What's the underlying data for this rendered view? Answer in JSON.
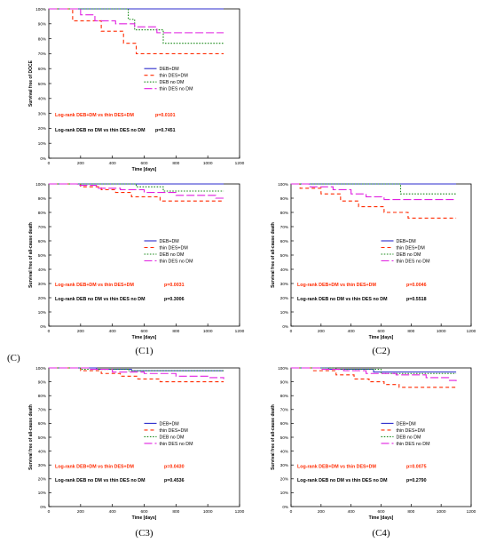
{
  "figure": {
    "section_label": "(C)",
    "captions": [
      "(C1)",
      "(C2)",
      "(C3)",
      "(C4)"
    ]
  },
  "legend_entries": [
    {
      "name": "DEB+DM",
      "color": "#2b2bcc",
      "dash": "solid"
    },
    {
      "name": "thin DES+DM",
      "color": "#ff2a00",
      "dash": "dashed"
    },
    {
      "name": "DEB no DM",
      "color": "#1a8a1a",
      "dash": "dotted"
    },
    {
      "name": "thin DES no DM",
      "color": "#e020e0",
      "dash": "longdash"
    }
  ],
  "chart_data": [
    {
      "type": "line",
      "caption": "",
      "ylabel": "Survival free of DOCE",
      "xlabel": "Time [days]",
      "xlim": [
        0,
        1200
      ],
      "ylim": [
        0,
        100
      ],
      "xticks": [
        0,
        200,
        400,
        600,
        800,
        1000,
        1200
      ],
      "yticks": [
        0,
        10,
        20,
        30,
        40,
        50,
        60,
        70,
        80,
        90,
        100
      ],
      "grid": false,
      "legend_position": "lower-middle",
      "stats": [
        {
          "text": "Log-rank DEB+DM vs thin DES+DM",
          "p": "p=0.0101",
          "color": "#ff2a00"
        },
        {
          "text": "Log-rank DEB no DM vs thin DES no DM",
          "p": "p=0.7451",
          "color": "#000000"
        }
      ],
      "series": [
        {
          "name": "DEB+DM",
          "x": [
            0,
            1100
          ],
          "y": [
            100,
            100
          ]
        },
        {
          "name": "thin DES+DM",
          "x": [
            0,
            150,
            330,
            470,
            550,
            1100
          ],
          "y": [
            100,
            92,
            85,
            77,
            70,
            70
          ]
        },
        {
          "name": "DEB no DM",
          "x": [
            0,
            500,
            540,
            720,
            1100
          ],
          "y": [
            100,
            93,
            86,
            77,
            77
          ]
        },
        {
          "name": "thin DES no DM",
          "x": [
            0,
            200,
            290,
            420,
            540,
            680,
            1100
          ],
          "y": [
            100,
            96,
            92,
            90,
            88,
            84,
            84
          ]
        }
      ]
    },
    {
      "type": "line",
      "caption": "(C1)",
      "ylabel": "Survival free of all-cause death",
      "xlabel": "Time [days]",
      "xlim": [
        0,
        1200
      ],
      "ylim": [
        0,
        100
      ],
      "xticks": [
        0,
        200,
        400,
        600,
        800,
        1000,
        1200
      ],
      "yticks": [
        0,
        10,
        20,
        30,
        40,
        50,
        60,
        70,
        80,
        90,
        100
      ],
      "grid": false,
      "legend_position": "lower-middle",
      "stats": [
        {
          "text": "Log-rank DEB+DM vs thin DES+DM",
          "p": "p=0.0031",
          "color": "#ff2a00"
        },
        {
          "text": "Log-rank DEB no DM vs thin DES no DM",
          "p": "p=0.3006",
          "color": "#000000"
        }
      ],
      "series": [
        {
          "name": "DEB+DM",
          "x": [
            0,
            1100
          ],
          "y": [
            100,
            100
          ]
        },
        {
          "name": "thin DES+DM",
          "x": [
            0,
            200,
            330,
            420,
            520,
            700,
            1100
          ],
          "y": [
            100,
            98,
            96,
            94,
            91,
            88,
            88
          ]
        },
        {
          "name": "DEB no DM",
          "x": [
            0,
            550,
            720,
            1100
          ],
          "y": [
            100,
            98,
            95,
            95
          ]
        },
        {
          "name": "thin DES no DM",
          "x": [
            0,
            180,
            300,
            450,
            600,
            800,
            1050,
            1100
          ],
          "y": [
            100,
            99,
            97,
            96,
            94,
            92,
            90,
            90
          ]
        }
      ]
    },
    {
      "type": "line",
      "caption": "(C2)",
      "ylabel": "Survival free of all-cause death",
      "xlabel": "Time [days]",
      "xlim": [
        0,
        1200
      ],
      "ylim": [
        0,
        100
      ],
      "xticks": [
        0,
        200,
        400,
        600,
        800,
        1000,
        1200
      ],
      "yticks": [
        0,
        10,
        20,
        30,
        40,
        50,
        60,
        70,
        80,
        90,
        100
      ],
      "grid": false,
      "legend_position": "lower-middle",
      "stats": [
        {
          "text": "Log-rank DEB+DM vs thin DES+DM",
          "p": "p=0.0046",
          "color": "#ff2a00"
        },
        {
          "text": "Log-rank DEB no DM vs thin DES no DM",
          "p": "p=0.5518",
          "color": "#000000"
        }
      ],
      "series": [
        {
          "name": "DEB+DM",
          "x": [
            0,
            1100
          ],
          "y": [
            100,
            100
          ]
        },
        {
          "name": "thin DES+DM",
          "x": [
            0,
            60,
            200,
            330,
            450,
            620,
            780,
            1100
          ],
          "y": [
            100,
            97,
            93,
            88,
            84,
            80,
            76,
            76
          ]
        },
        {
          "name": "DEB no DM",
          "x": [
            0,
            700,
            730,
            1100
          ],
          "y": [
            100,
            100,
            93,
            93
          ]
        },
        {
          "name": "thin DES no DM",
          "x": [
            0,
            120,
            280,
            400,
            500,
            620,
            1100
          ],
          "y": [
            100,
            98,
            96,
            93,
            91,
            89,
            89
          ]
        }
      ]
    },
    {
      "type": "line",
      "caption": "(C3)",
      "ylabel": "Survival free of all-cause death",
      "xlabel": "Time [days]",
      "xlim": [
        0,
        1200
      ],
      "ylim": [
        0,
        100
      ],
      "xticks": [
        0,
        200,
        400,
        600,
        800,
        1000,
        1200
      ],
      "yticks": [
        0,
        10,
        20,
        30,
        40,
        50,
        60,
        70,
        80,
        90,
        100
      ],
      "grid": false,
      "legend_position": "lower-middle",
      "stats": [
        {
          "text": "Log-rank DEB+DM vs thin DES+DM",
          "p": "p=0.0430",
          "color": "#ff2a00"
        },
        {
          "text": "Log-rank DEB no DM vs thin DES no DM",
          "p": "p=0.4536",
          "color": "#000000"
        }
      ],
      "series": [
        {
          "name": "DEB+DM",
          "x": [
            0,
            300,
            520,
            1100
          ],
          "y": [
            100,
            99,
            98,
            98
          ]
        },
        {
          "name": "thin DES+DM",
          "x": [
            0,
            200,
            330,
            450,
            560,
            700,
            1100
          ],
          "y": [
            100,
            98,
            96,
            94,
            92,
            90,
            90
          ]
        },
        {
          "name": "DEB no DM",
          "x": [
            0,
            200,
            500,
            1100
          ],
          "y": [
            100,
            99,
            98,
            98
          ]
        },
        {
          "name": "thin DES no DM",
          "x": [
            0,
            250,
            400,
            600,
            800,
            1000,
            1100
          ],
          "y": [
            100,
            99,
            97,
            96,
            94,
            93,
            92
          ]
        }
      ]
    },
    {
      "type": "line",
      "caption": "(C4)",
      "ylabel": "Survival free of all-cause death",
      "xlabel": "Time [days]",
      "xlim": [
        0,
        1200
      ],
      "ylim": [
        0,
        100
      ],
      "xticks": [
        0,
        200,
        400,
        600,
        800,
        1000,
        1200
      ],
      "yticks": [
        0,
        10,
        20,
        30,
        40,
        50,
        60,
        70,
        80,
        90,
        100
      ],
      "grid": false,
      "legend_position": "lower-middle",
      "stats": [
        {
          "text": "Log-rank DEB+DM vs thin DES+DM",
          "p": "p=0.0075",
          "color": "#ff2a00"
        },
        {
          "text": "Log-rank DEB no DM vs thin DES no DM",
          "p": "p=0.2790",
          "color": "#000000"
        }
      ],
      "series": [
        {
          "name": "DEB+DM",
          "x": [
            0,
            250,
            550,
            1100
          ],
          "y": [
            100,
            99,
            97,
            97
          ]
        },
        {
          "name": "thin DES+DM",
          "x": [
            0,
            150,
            300,
            420,
            520,
            620,
            720,
            1100
          ],
          "y": [
            100,
            98,
            95,
            92,
            90,
            88,
            86,
            86
          ]
        },
        {
          "name": "DEB no DM",
          "x": [
            0,
            300,
            600,
            1100
          ],
          "y": [
            100,
            99,
            96,
            96
          ]
        },
        {
          "name": "thin DES no DM",
          "x": [
            0,
            200,
            350,
            500,
            700,
            900,
            1050,
            1100
          ],
          "y": [
            100,
            99,
            98,
            96,
            95,
            93,
            91,
            89
          ]
        }
      ]
    }
  ]
}
